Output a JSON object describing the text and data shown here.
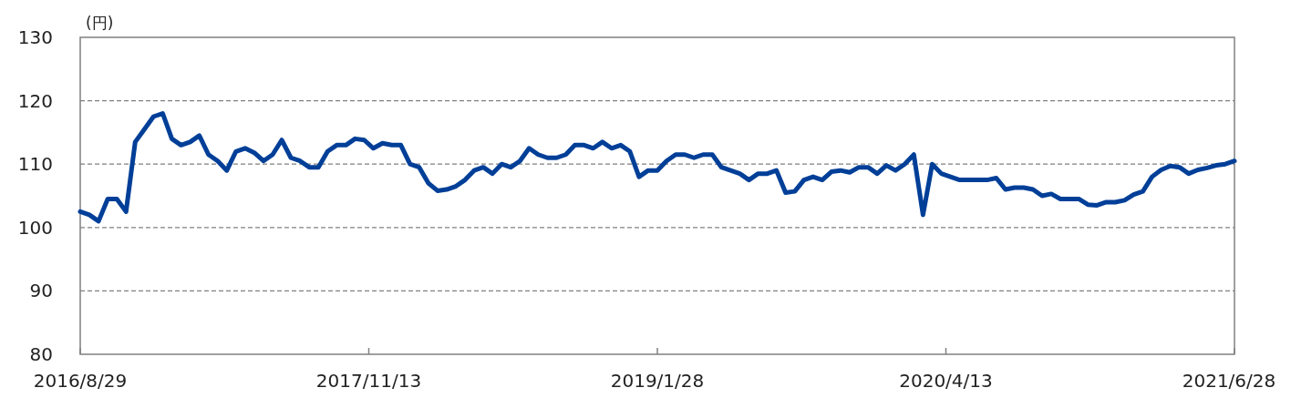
{
  "chart_data": {
    "type": "line",
    "ylabel": "(円)",
    "x": [
      "2016-08-29",
      "2016-09-12",
      "2016-09-26",
      "2016-10-10",
      "2016-10-24",
      "2016-11-07",
      "2016-11-21",
      "2016-12-05",
      "2016-12-19",
      "2017-01-02",
      "2017-01-16",
      "2017-01-30",
      "2017-02-13",
      "2017-02-27",
      "2017-03-13",
      "2017-03-27",
      "2017-04-10",
      "2017-04-24",
      "2017-05-08",
      "2017-05-22",
      "2017-06-05",
      "2017-06-19",
      "2017-07-03",
      "2017-07-17",
      "2017-07-31",
      "2017-08-14",
      "2017-08-28",
      "2017-09-11",
      "2017-09-25",
      "2017-10-09",
      "2017-10-23",
      "2017-11-06",
      "2017-11-20",
      "2017-12-04",
      "2017-12-18",
      "2018-01-01",
      "2018-01-15",
      "2018-01-29",
      "2018-02-12",
      "2018-02-26",
      "2018-03-12",
      "2018-03-26",
      "2018-04-09",
      "2018-04-23",
      "2018-05-07",
      "2018-05-21",
      "2018-06-04",
      "2018-06-18",
      "2018-07-02",
      "2018-07-16",
      "2018-07-30",
      "2018-08-13",
      "2018-08-27",
      "2018-09-10",
      "2018-09-24",
      "2018-10-08",
      "2018-10-22",
      "2018-11-05",
      "2018-11-19",
      "2018-12-03",
      "2018-12-17",
      "2018-12-31",
      "2019-01-14",
      "2019-01-28",
      "2019-02-11",
      "2019-02-25",
      "2019-03-11",
      "2019-03-25",
      "2019-04-08",
      "2019-04-22",
      "2019-05-06",
      "2019-05-20",
      "2019-06-03",
      "2019-06-17",
      "2019-07-01",
      "2019-07-15",
      "2019-07-29",
      "2019-08-12",
      "2019-08-26",
      "2019-09-09",
      "2019-09-23",
      "2019-10-07",
      "2019-10-21",
      "2019-11-04",
      "2019-11-18",
      "2019-12-02",
      "2019-12-16",
      "2019-12-30",
      "2020-01-13",
      "2020-01-27",
      "2020-02-10",
      "2020-02-24",
      "2020-03-09",
      "2020-03-23",
      "2020-04-06",
      "2020-04-20",
      "2020-05-04",
      "2020-05-18",
      "2020-06-01",
      "2020-06-15",
      "2020-06-29",
      "2020-07-13",
      "2020-07-27",
      "2020-08-10",
      "2020-08-24",
      "2020-09-07",
      "2020-09-21",
      "2020-10-05",
      "2020-10-19",
      "2020-11-02",
      "2020-11-16",
      "2020-11-30",
      "2020-12-14",
      "2020-12-28",
      "2021-01-11",
      "2021-01-25",
      "2021-02-08",
      "2021-02-22",
      "2021-03-08",
      "2021-03-22",
      "2021-04-05",
      "2021-04-19",
      "2021-05-03",
      "2021-05-17",
      "2021-05-31",
      "2021-06-14",
      "2021-06-28"
    ],
    "series": [
      {
        "color": "#003f98",
        "values": [
          102.5,
          102,
          101,
          104.5,
          104.5,
          102.5,
          113.5,
          115.5,
          117.5,
          118,
          114,
          113,
          113.5,
          114.5,
          111.5,
          110.5,
          109,
          112,
          112.5,
          111.8,
          110.5,
          111.5,
          113.8,
          111,
          110.5,
          109.5,
          109.5,
          112,
          113,
          113,
          114,
          113.8,
          112.5,
          113.3,
          113,
          113,
          110,
          109.5,
          107,
          105.8,
          106,
          106.5,
          107.5,
          109,
          109.5,
          108.5,
          110,
          109.5,
          110.5,
          112.5,
          111.5,
          111,
          111,
          111.5,
          113,
          113,
          112.5,
          113.5,
          112.5,
          113,
          112,
          108,
          109,
          109,
          110.5,
          111.5,
          111.5,
          111,
          111.5,
          111.5,
          109.5,
          109,
          108.5,
          107.5,
          108.5,
          108.5,
          109,
          105.5,
          105.7,
          107.5,
          108,
          107.5,
          108.8,
          109,
          108.7,
          109.5,
          109.5,
          108.5,
          109.8,
          109,
          110,
          111.5,
          102,
          110,
          108.5,
          108,
          107.5,
          107.5,
          107.5,
          107.5,
          107.8,
          106,
          106.3,
          106.3,
          106,
          105,
          105.3,
          104.5,
          104.5,
          104.5,
          103.6,
          103.5,
          104,
          104,
          104.3,
          105.2,
          105.7,
          108,
          109.1,
          109.7,
          109.5,
          108.5,
          109.1,
          109.4,
          109.8,
          110,
          110.5
        ]
      }
    ],
    "xlim": [
      "2016-08-29",
      "2021-06-28"
    ],
    "xticks": [
      {
        "value": "2016-08-29",
        "label": "2016/8/29"
      },
      {
        "value": "2017-11-13",
        "label": "2017/11/13"
      },
      {
        "value": "2019-01-28",
        "label": "2019/1/28"
      },
      {
        "value": "2020-04-13",
        "label": "2020/4/13"
      },
      {
        "value": "2021-06-28",
        "label": "2021/6/28"
      }
    ],
    "ylim": [
      80,
      130
    ],
    "yticks": [
      80,
      90,
      100,
      110,
      120,
      130
    ],
    "grid": "y",
    "marker": "none",
    "line_style": "solid"
  }
}
